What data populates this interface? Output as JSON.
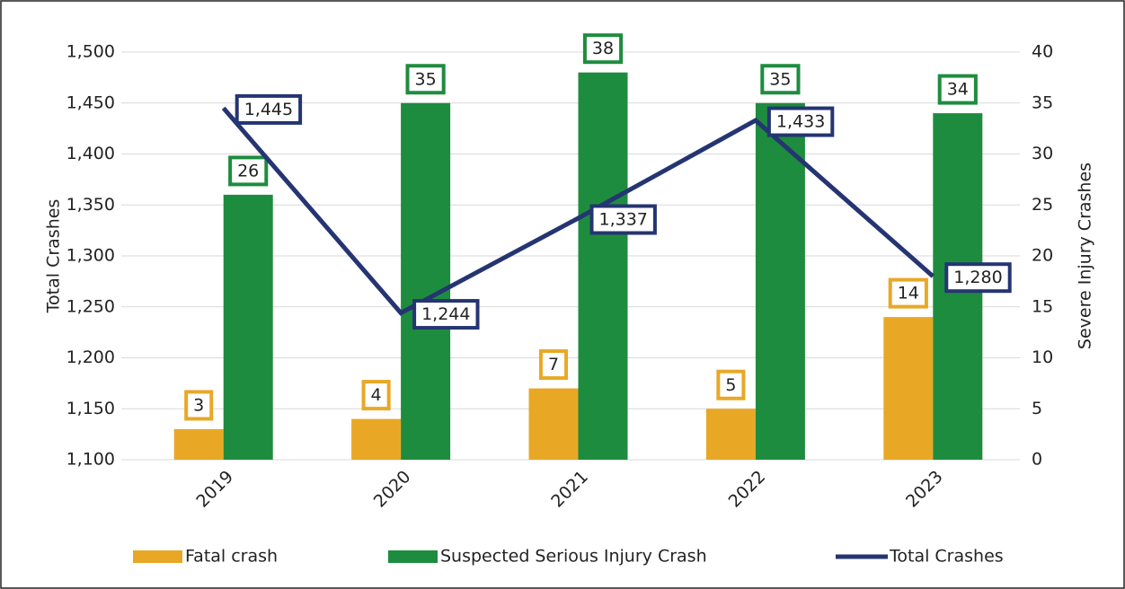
{
  "chart_data": {
    "type": "bar",
    "categories": [
      "2019",
      "2020",
      "2021",
      "2022",
      "2023"
    ],
    "series": [
      {
        "name": "Fatal crash",
        "type": "bar",
        "axis": "y2",
        "color": "#E8A826",
        "values": [
          3,
          4,
          7,
          5,
          14
        ]
      },
      {
        "name": "Suspected Serious Injury Crash",
        "type": "bar",
        "axis": "y2",
        "color": "#1E8C3E",
        "values": [
          26,
          35,
          38,
          35,
          34
        ]
      },
      {
        "name": "Total Crashes",
        "type": "line",
        "color": "#253572",
        "values": [
          1445,
          1244,
          1337,
          1433,
          1280
        ],
        "value_labels": [
          "1,445",
          "1,244",
          "1,337",
          "1,433",
          "1,280"
        ]
      }
    ],
    "ylabel": "Total Crashes",
    "y2label": "Severe Injury Crashes",
    "ylim": [
      1100,
      1500
    ],
    "yticks": [
      {
        "value": 1100,
        "label": "1,100"
      },
      {
        "value": 1150,
        "label": "1,150"
      },
      {
        "value": 1200,
        "label": "1,200"
      },
      {
        "value": 1250,
        "label": "1,250"
      },
      {
        "value": 1300,
        "label": "1,300"
      },
      {
        "value": 1350,
        "label": "1,350"
      },
      {
        "value": 1400,
        "label": "1,400"
      },
      {
        "value": 1450,
        "label": "1,450"
      },
      {
        "value": 1500,
        "label": "1,500"
      }
    ],
    "y2lim": [
      0,
      40
    ],
    "y2ticks": [
      0,
      5,
      10,
      15,
      20,
      25,
      30,
      35,
      40
    ],
    "grid": true,
    "legend": "bottom"
  }
}
